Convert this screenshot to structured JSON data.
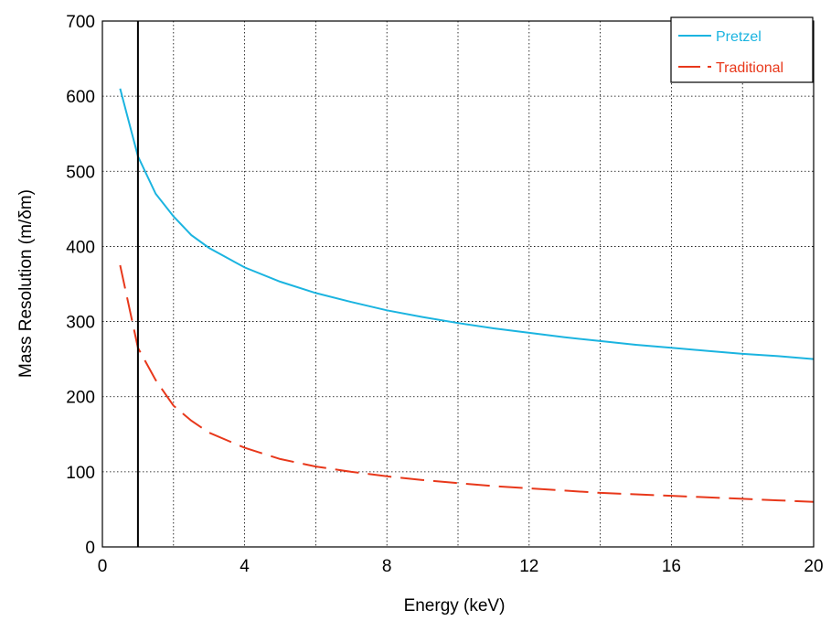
{
  "chart_data": {
    "type": "line",
    "xlabel": "Energy (keV)",
    "ylabel": "Mass Resolution (m/δm)",
    "xlim": [
      0,
      20
    ],
    "ylim": [
      0,
      700
    ],
    "xticks": [
      0,
      2,
      4,
      6,
      8,
      10,
      12,
      14,
      16,
      18,
      20
    ],
    "xtick_labels": [
      "0",
      "",
      "4",
      "",
      "8",
      "",
      "12",
      "",
      "16",
      "",
      "20"
    ],
    "yticks": [
      0,
      100,
      200,
      300,
      400,
      500,
      600,
      700
    ],
    "ytick_labels": [
      "0",
      "100",
      "200",
      "300",
      "400",
      "500",
      "600",
      "700"
    ],
    "grid": true,
    "legend_position": "top-right",
    "vertical_line_x": 1,
    "series": [
      {
        "name": "Pretzel",
        "color": "#1bb4e0",
        "style": "solid",
        "x": [
          0.5,
          1,
          1.5,
          2,
          2.5,
          3,
          4,
          5,
          6,
          7,
          8,
          9,
          10,
          11,
          12,
          13,
          14,
          15,
          16,
          17,
          18,
          19,
          20
        ],
        "y": [
          610,
          520,
          470,
          440,
          415,
          398,
          372,
          353,
          338,
          326,
          315,
          306,
          298,
          291,
          285,
          279,
          274,
          269,
          265,
          261,
          257,
          254,
          250
        ]
      },
      {
        "name": "Traditional",
        "color": "#e8381b",
        "style": "dashed",
        "x": [
          0.5,
          1,
          1.5,
          2,
          2.5,
          3,
          4,
          5,
          6,
          7,
          8,
          9,
          10,
          11,
          12,
          13,
          14,
          15,
          16,
          17,
          18,
          19,
          20
        ],
        "y": [
          375,
          265,
          222,
          188,
          168,
          152,
          132,
          117,
          107,
          100,
          94,
          89,
          85,
          81,
          78,
          75,
          72,
          70,
          68,
          66,
          64,
          62,
          60
        ]
      }
    ]
  }
}
